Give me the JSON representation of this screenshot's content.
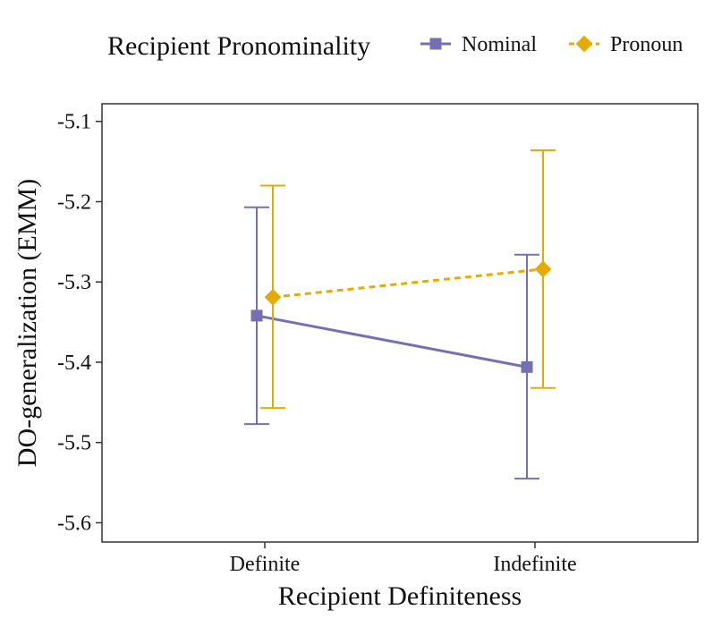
{
  "chart_data": {
    "type": "line",
    "title": "",
    "xlabel": "Recipient Definiteness",
    "ylabel": "DO-generalization (EMM)",
    "categories": [
      "Definite",
      "Indefinite"
    ],
    "ylim": [
      -5.624,
      -5.078
    ],
    "yticks": [
      -5.1,
      -5.2,
      -5.3,
      -5.4,
      -5.5,
      -5.6
    ],
    "ytick_labels": [
      "-5.1",
      "-5.2",
      "-5.3",
      "-5.4",
      "-5.5",
      "-5.6"
    ],
    "grid": false,
    "legend": {
      "title": "Recipient Pronominality",
      "position": "top"
    },
    "series": [
      {
        "name": "Nominal",
        "marker": "square",
        "line": "solid",
        "color": "#7570b3",
        "values": [
          -5.342,
          -5.406
        ],
        "lower": [
          -5.477,
          -5.545
        ],
        "upper": [
          -5.207,
          -5.266
        ]
      },
      {
        "name": "Pronoun",
        "marker": "diamond",
        "line": "dashed",
        "color": "#e6ab02",
        "values": [
          -5.319,
          -5.284
        ],
        "lower": [
          -5.457,
          -5.432
        ],
        "upper": [
          -5.18,
          -5.136
        ]
      }
    ]
  }
}
